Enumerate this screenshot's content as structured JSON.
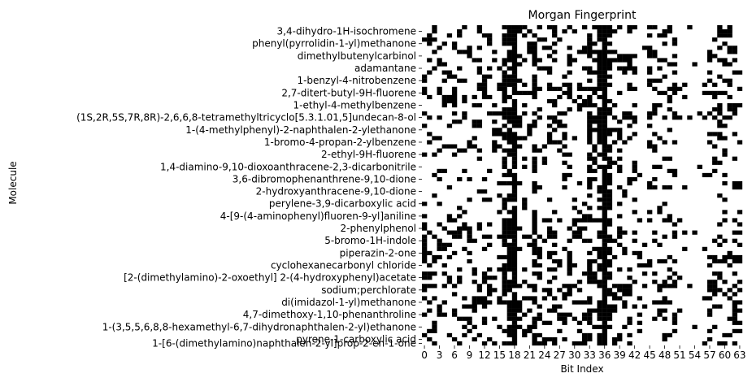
{
  "chart_data": {
    "type": "heatmap",
    "title": "Morgan Fingerprint",
    "xlabel": "Bit Index",
    "ylabel": "Molecule",
    "n_bits": 64,
    "n_molecules": 78,
    "value_range": [
      0,
      1
    ],
    "colors": {
      "on": "#000000",
      "off": "#ffffff"
    },
    "x_ticks": [
      0,
      3,
      6,
      9,
      12,
      15,
      18,
      21,
      24,
      27,
      30,
      33,
      36,
      39,
      42,
      45,
      48,
      51,
      54,
      57,
      60,
      63
    ],
    "y_tick_labels": [
      {
        "row": 1,
        "label": "3,4-dihydro-1H-isochromene"
      },
      {
        "row": 4,
        "label": "phenyl(pyrrolidin-1-yl)methanone"
      },
      {
        "row": 7,
        "label": "dimethylbutenylcarbinol"
      },
      {
        "row": 10,
        "label": "adamantane"
      },
      {
        "row": 13,
        "label": "1-benzyl-4-nitrobenzene"
      },
      {
        "row": 16,
        "label": "2,7-ditert-butyl-9H-fluorene"
      },
      {
        "row": 19,
        "label": "1-ethyl-4-methylbenzene"
      },
      {
        "row": 22,
        "label": "(1S,2R,5S,7R,8R)-2,6,6,8-tetramethyltricyclo[5.3.1.01,5]undecan-8-ol"
      },
      {
        "row": 25,
        "label": "1-(4-methylphenyl)-2-naphthalen-2-ylethanone"
      },
      {
        "row": 28,
        "label": "1-bromo-4-propan-2-ylbenzene"
      },
      {
        "row": 31,
        "label": "2-ethyl-9H-fluorene"
      },
      {
        "row": 34,
        "label": "1,4-diamino-9,10-dioxoanthracene-2,3-dicarbonitrile"
      },
      {
        "row": 37,
        "label": "3,6-dibromophenanthrene-9,10-dione"
      },
      {
        "row": 40,
        "label": "2-hydroxyanthracene-9,10-dione"
      },
      {
        "row": 43,
        "label": "perylene-3,9-dicarboxylic acid"
      },
      {
        "row": 46,
        "label": "4-[9-(4-aminophenyl)fluoren-9-yl]aniline"
      },
      {
        "row": 49,
        "label": "2-phenylphenol"
      },
      {
        "row": 52,
        "label": "5-bromo-1H-indole"
      },
      {
        "row": 55,
        "label": "piperazin-2-one"
      },
      {
        "row": 58,
        "label": "cyclohexanecarbonyl chloride"
      },
      {
        "row": 61,
        "label": "[2-(dimethylamino)-2-oxoethyl] 2-(4-hydroxyphenyl)acetate"
      },
      {
        "row": 64,
        "label": "sodium;perchlorate"
      },
      {
        "row": 67,
        "label": "di(imidazol-1-yl)methanone"
      },
      {
        "row": 70,
        "label": "4,7-dimethoxy-1,10-phenanthroline"
      },
      {
        "row": 73,
        "label": "1-(3,5,5,6,8,8-hexamethyl-6,7-dihydronaphthalen-2-yl)ethanone"
      },
      {
        "row": 76,
        "label": "pyrene-1-carboxylic acid"
      },
      {
        "row": 77,
        "label": "1-[6-(dimethylamino)naphthalen-2-yl]prop-2-en-1-one"
      }
    ],
    "dense_columns": {
      "always_on": [
        18,
        36
      ],
      "mostly_on": [
        16,
        17,
        22,
        33,
        35,
        37
      ],
      "rarely_on": [
        43,
        44,
        51,
        52,
        53,
        54,
        55,
        56
      ]
    }
  }
}
